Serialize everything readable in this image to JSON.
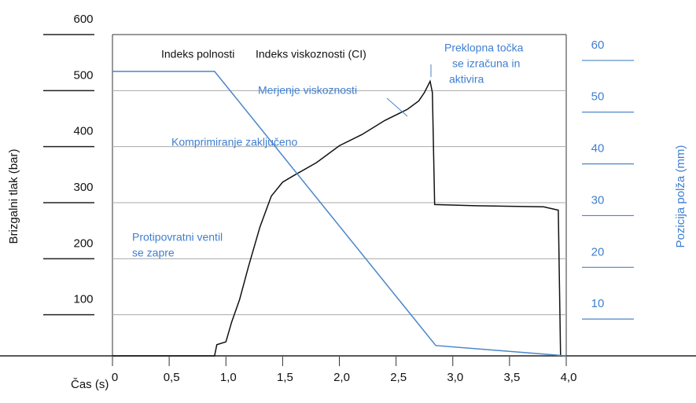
{
  "chart_data": {
    "type": "line",
    "x_label": "Čas (s)",
    "y_label": "Brizgalni tlak (bar)",
    "y2_label": "Pozicija polža (mm)",
    "xlim": [
      0,
      4
    ],
    "xticks": [
      0,
      {
        "value": 0.5,
        "label": "0,5"
      },
      {
        "value": 1,
        "label": "1,0"
      },
      {
        "value": 1.5,
        "label": "1,5"
      },
      {
        "value": 2,
        "label": "2,0"
      },
      {
        "value": 2.5,
        "label": "2,5"
      },
      {
        "value": 3,
        "label": "3,0"
      },
      {
        "value": 3.5,
        "label": "3,5"
      },
      {
        "value": 4,
        "label": "4,0"
      }
    ],
    "ylim": [
      0,
      600
    ],
    "yticks": [
      100,
      200,
      300,
      400,
      500,
      600
    ],
    "y2lim": [
      0,
      65
    ],
    "y2ticks": [
      10,
      20,
      30,
      40,
      50,
      60
    ],
    "grid": true,
    "series": [
      {
        "color": "#111111",
        "x": [
          0,
          0.9,
          0.92,
          1.0,
          1.05,
          1.12,
          1.2,
          1.3,
          1.4,
          1.5,
          1.6,
          1.8,
          2.0,
          2.2,
          2.4,
          2.6,
          2.7,
          2.75,
          2.8,
          2.82,
          2.84,
          3.2,
          3.8,
          3.93,
          3.95,
          4.0
        ],
        "values": [
          0,
          0,
          20,
          25,
          60,
          100,
          160,
          230,
          285,
          310,
          322,
          345,
          375,
          395,
          420,
          440,
          455,
          470,
          490,
          470,
          270,
          268,
          266,
          260,
          0,
          0
        ]
      },
      {
        "color": "#4a86c8",
        "axis": "y2",
        "x": [
          0,
          0.9,
          2.85,
          4.0
        ],
        "values": [
          55,
          55,
          2,
          0
        ]
      }
    ],
    "annotations": [
      {
        "lines": [
          "Indeks polnosti"
        ],
        "color": "#111111"
      },
      {
        "lines": [
          "Indeks viskoznosti (CI)"
        ],
        "color": "#111111"
      },
      {
        "lines": [
          "Merjenje viskoznosti"
        ],
        "color": "#3f7fcf"
      },
      {
        "lines": [
          "Komprimiranje zaključeno"
        ],
        "color": "#3f7fcf"
      },
      {
        "lines": [
          "Protipovratni ventil",
          "se zapre"
        ],
        "color": "#3f7fcf"
      },
      {
        "lines": [
          "Preklopna točka",
          "se izračuna in",
          "aktivira"
        ],
        "color": "#3f7fcf"
      }
    ]
  }
}
